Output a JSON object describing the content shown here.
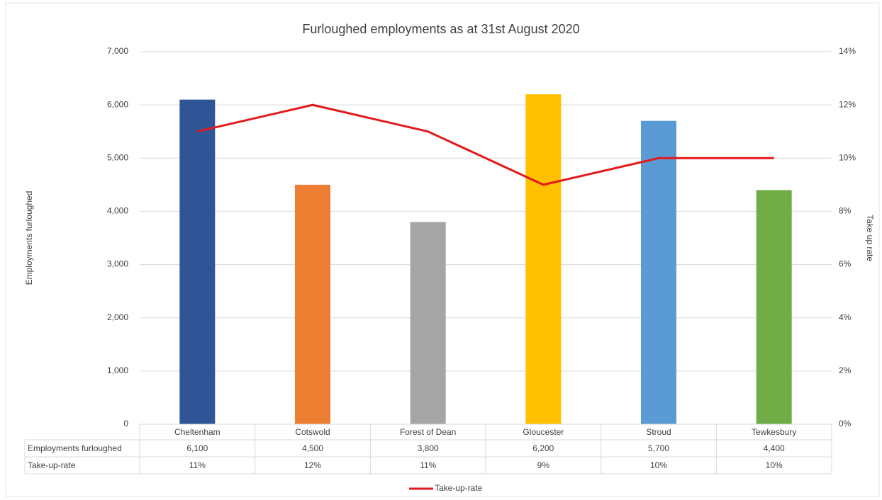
{
  "chart_data": {
    "type": "bar",
    "title": "Furloughed employments as at 31st August 2020",
    "y_label": "Employments furloughed",
    "y2_label": "Take up rate",
    "categories": [
      "Cheltenham",
      "Cotswold",
      "Forest of Dean",
      "Gloucester",
      "Stroud",
      "Tewkesbury"
    ],
    "series": [
      {
        "name": "Employments furloughed",
        "type": "bar",
        "colors": [
          "#2f5597",
          "#ed7d31",
          "#a5a5a5",
          "#ffc000",
          "#5b9bd5",
          "#70ad47"
        ],
        "values": [
          6100,
          4500,
          3800,
          6200,
          5700,
          4400
        ],
        "value_labels": [
          "6,100",
          "4,500",
          "3,800",
          "6,200",
          "5,700",
          "4,400"
        ]
      },
      {
        "name": "Take-up-rate",
        "type": "line",
        "axis": "y2",
        "color": "#e31a1c",
        "values": [
          11,
          12,
          11,
          9,
          10,
          10
        ],
        "value_labels": [
          "11%",
          "12%",
          "11%",
          "9%",
          "10%",
          "10%"
        ]
      }
    ],
    "ylim": [
      0,
      7000
    ],
    "yticks": [
      0,
      {
        "value": 1000,
        "label": "1,000"
      },
      {
        "value": 2000,
        "label": "2,000"
      },
      {
        "value": 3000,
        "label": "3,000"
      },
      {
        "value": 4000,
        "label": "4,000"
      },
      {
        "value": 5000,
        "label": "5,000"
      },
      {
        "value": 6000,
        "label": "6,000"
      },
      {
        "value": 7000,
        "label": "7,000"
      }
    ],
    "y2lim": [
      0,
      14
    ],
    "y2ticks": [
      {
        "value": 0,
        "label": "0%"
      },
      {
        "value": 2,
        "label": "2%"
      },
      {
        "value": 4,
        "label": "4%"
      },
      {
        "value": 6,
        "label": "6%"
      },
      {
        "value": 8,
        "label": "8%"
      },
      {
        "value": 10,
        "label": "10%"
      },
      {
        "value": 12,
        "label": "12%"
      },
      {
        "value": 14,
        "label": "14%"
      }
    ],
    "grid": true,
    "legend": "bottom",
    "data_table": true
  }
}
